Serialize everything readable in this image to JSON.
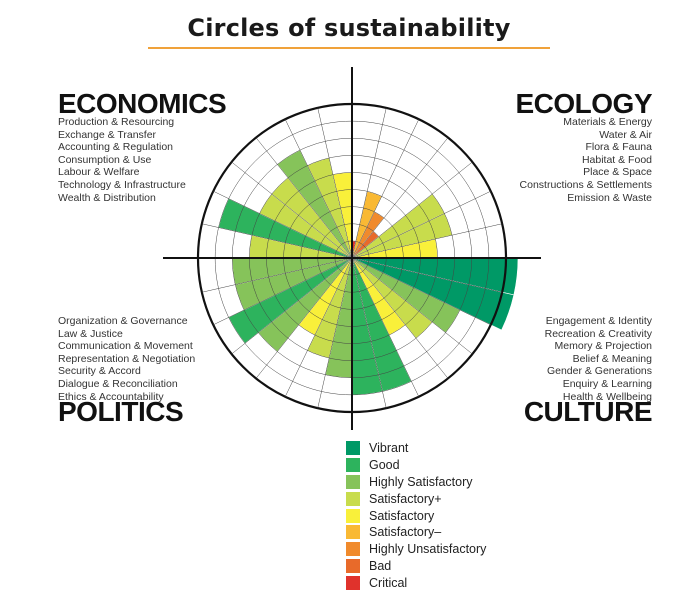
{
  "title": "Circles of sustainability",
  "legend": [
    {
      "label": "Vibrant",
      "color": "#009966"
    },
    {
      "label": "Good",
      "color": "#2db35d"
    },
    {
      "label": "Highly Satisfactory",
      "color": "#86c35a"
    },
    {
      "label": "Satisfactory+",
      "color": "#c8dc4c"
    },
    {
      "label": "Satisfactory",
      "color": "#f9f03a"
    },
    {
      "label": "Satisfactory–",
      "color": "#f9b934"
    },
    {
      "label": "Highly Unsatisfactory",
      "color": "#f08a2c"
    },
    {
      "label": "Bad",
      "color": "#e86a2a"
    },
    {
      "label": "Critical",
      "color": "#e0322c"
    }
  ],
  "domains": {
    "economics": {
      "title": "ECONOMICS",
      "indicators": [
        {
          "label": "Production & Resourcing",
          "level": 6
        },
        {
          "label": "Exchange & Transfer",
          "level": 8
        },
        {
          "label": "Accounting & Regulation",
          "level": 6
        },
        {
          "label": "Consumption & Use",
          "level": 6
        },
        {
          "label": "Labour & Welfare",
          "level": 7
        },
        {
          "label": "Technology & Infrastructure",
          "level": 6
        },
        {
          "label": "Wealth & Distribution",
          "level": 5
        }
      ]
    },
    "ecology": {
      "title": "ECOLOGY",
      "indicators": [
        {
          "label": "Materials & Energy",
          "level": 1
        },
        {
          "label": "Water & Air",
          "level": 4
        },
        {
          "label": "Flora & Fauna",
          "level": 3
        },
        {
          "label": "Habitat & Food",
          "level": 2
        },
        {
          "label": "Place & Space",
          "level": 6
        },
        {
          "label": "Constructions & Settlements",
          "level": 6
        },
        {
          "label": "Emission & Waste",
          "level": 5
        }
      ]
    },
    "culture": {
      "title": "CULTURE",
      "indicators": [
        {
          "label": "Engagement & Identity",
          "level": 9
        },
        {
          "label": "Recreation & Creativity",
          "level": 9
        },
        {
          "label": "Memory & Projection",
          "level": 7
        },
        {
          "label": "Belief & Meaning",
          "level": 6
        },
        {
          "label": "Gender & Generations",
          "level": 5
        },
        {
          "label": "Enquiry & Learning",
          "level": 8
        },
        {
          "label": "Health & Wellbeing",
          "level": 8
        }
      ]
    },
    "politics": {
      "title": "POLITICS",
      "indicators": [
        {
          "label": "Organization & Governance",
          "level": 7
        },
        {
          "label": "Law & Justice",
          "level": 6
        },
        {
          "label": "Communication & Movement",
          "level": 5
        },
        {
          "label": "Representation & Negotiation",
          "level": 7
        },
        {
          "label": "Security & Accord",
          "level": 8
        },
        {
          "label": "Dialogue & Reconciliation",
          "level": 7
        },
        {
          "label": "Ethics & Accountability",
          "level": 7
        }
      ]
    }
  }
}
